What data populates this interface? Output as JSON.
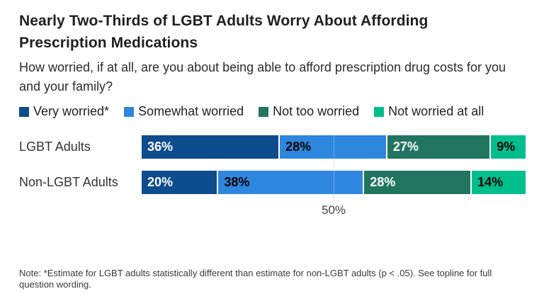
{
  "header": {
    "title": "Nearly Two-Thirds of LGBT Adults Worry About Affording Prescription Medications",
    "subtitle": "How worried, if at all, are you about being able to afford prescription drug costs for you and your family?"
  },
  "note": {
    "text": "Note: *Estimate for LGBT adults statistically different than estimate for non-LGBT adults (p < .05). See topline for full question wording."
  },
  "chart_data": {
    "type": "bar",
    "orientation": "horizontal_stacked",
    "title": "Nearly Two-Thirds of LGBT Adults Worry About Affording Prescription Medications",
    "categories": [
      "LGBT Adults",
      "Non-LGBT Adults"
    ],
    "series": [
      {
        "name": "Very worried*",
        "color": "#0d4c8d",
        "label_text_color": "#ffffff",
        "values": [
          36,
          20
        ]
      },
      {
        "name": "Somewhat worried",
        "color": "#2e86de",
        "label_text_color": "#000000",
        "values": [
          28,
          38
        ]
      },
      {
        "name": "Not too worried",
        "color": "#21755f",
        "label_text_color": "#ffffff",
        "values": [
          27,
          28
        ]
      },
      {
        "name": "Not worried at all",
        "color": "#00bf8c",
        "label_text_color": "#000000",
        "values": [
          9,
          14
        ]
      }
    ],
    "value_suffix": "%",
    "xlim": [
      0,
      100
    ],
    "x_axis": {
      "tick_label": "50%",
      "tick_value": 50
    },
    "legend_position": "top",
    "grid": "single 50% vertical gridline",
    "gridline_color": "#d9d9d9"
  }
}
